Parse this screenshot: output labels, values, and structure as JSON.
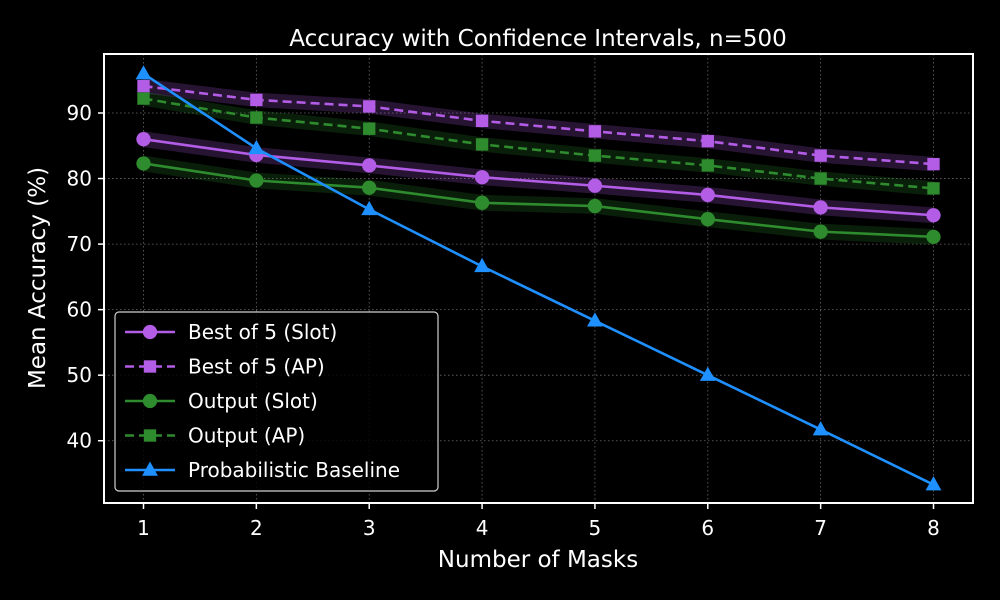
{
  "chart_data": {
    "type": "line",
    "title": "Accuracy with Confidence Intervals, n=500",
    "xlabel": "Number of Masks",
    "ylabel": "Mean Accuracy (%)",
    "x": [
      1,
      2,
      3,
      4,
      5,
      6,
      7,
      8
    ],
    "xlim": [
      0.65,
      8.35
    ],
    "ylim": [
      30.5,
      99
    ],
    "xticks": [
      "1",
      "2",
      "3",
      "4",
      "5",
      "6",
      "7",
      "8"
    ],
    "yticks": [
      40,
      50,
      60,
      70,
      80,
      90
    ],
    "grid": true,
    "legend_position": "lower-left",
    "background": "#000000",
    "series": [
      {
        "name": "Best of 5 (Slot)",
        "color": "#b35ce6",
        "marker": "circle",
        "dashed": false,
        "ci": 1.2,
        "values": [
          86.0,
          83.6,
          82.0,
          80.2,
          78.9,
          77.5,
          75.6,
          74.4
        ]
      },
      {
        "name": "Best of 5 (AP)",
        "color": "#b35ce6",
        "marker": "square",
        "dashed": true,
        "ci": 1.1,
        "values": [
          94.1,
          92.0,
          91.0,
          88.8,
          87.2,
          85.7,
          83.5,
          82.2
        ]
      },
      {
        "name": "Output (Slot)",
        "color": "#2e8b2e",
        "marker": "circle",
        "dashed": false,
        "ci": 1.2,
        "values": [
          82.3,
          79.7,
          78.6,
          76.3,
          75.8,
          73.8,
          71.9,
          71.1
        ]
      },
      {
        "name": "Output (AP)",
        "color": "#2e8b2e",
        "marker": "square",
        "dashed": true,
        "ci": 1.1,
        "values": [
          92.2,
          89.3,
          87.6,
          85.2,
          83.5,
          82.0,
          80.0,
          78.5
        ]
      },
      {
        "name": "Probabilistic Baseline",
        "color": "#1e90ff",
        "marker": "triangle",
        "dashed": false,
        "ci": 0,
        "values": [
          96.0,
          84.6,
          75.3,
          66.6,
          58.3,
          50.0,
          41.7,
          33.3
        ]
      }
    ]
  }
}
